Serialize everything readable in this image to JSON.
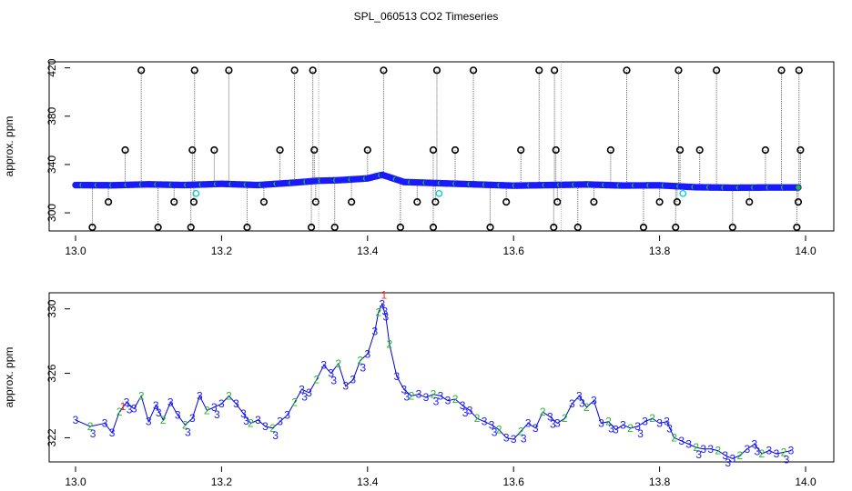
{
  "title": "SPL_060513  CO2 Timeseries",
  "colors": {
    "outlier": "#000000",
    "main_points": "#1a1aff",
    "fill_green": "#22bb22",
    "red": "#ff2222",
    "cyan": "#00cccc",
    "dotted": "#666666",
    "line": "#0000cc"
  },
  "chart_data": [
    {
      "type": "scatter",
      "title": "SPL_060513  CO2 Timeseries",
      "xlabel": "",
      "ylabel": "approx. ppm",
      "xlim": [
        13.0,
        14.0
      ],
      "ylim": [
        285,
        425
      ],
      "xticks": [
        13.0,
        13.2,
        13.4,
        13.6,
        13.8,
        14.0
      ],
      "xtick_labels": [
        "13.0",
        "13.2",
        "13.4",
        "13.6",
        "13.8",
        "14.0"
      ],
      "yticks": [
        300,
        340,
        380,
        420
      ],
      "ytick_labels": [
        "300",
        "340",
        "380",
        "420"
      ],
      "baseline": [
        [
          13.0,
          323.0
        ],
        [
          13.05,
          322.8
        ],
        [
          13.1,
          323.6
        ],
        [
          13.15,
          323.0
        ],
        [
          13.2,
          324.0
        ],
        [
          13.25,
          323.0
        ],
        [
          13.3,
          325.0
        ],
        [
          13.33,
          326.5
        ],
        [
          13.36,
          327.0
        ],
        [
          13.4,
          328.5
        ],
        [
          13.42,
          331.5
        ],
        [
          13.45,
          325.5
        ],
        [
          13.5,
          324.5
        ],
        [
          13.55,
          323.5
        ],
        [
          13.6,
          322.5
        ],
        [
          13.65,
          323.0
        ],
        [
          13.7,
          323.5
        ],
        [
          13.75,
          322.6
        ],
        [
          13.8,
          322.8
        ],
        [
          13.85,
          321.2
        ],
        [
          13.9,
          320.8
        ],
        [
          13.95,
          321.0
        ],
        [
          13.99,
          321.0
        ]
      ],
      "outliers": [
        [
          13.023,
          288
        ],
        [
          13.045,
          309
        ],
        [
          13.068,
          352
        ],
        [
          13.09,
          418
        ],
        [
          13.113,
          288
        ],
        [
          13.135,
          309
        ],
        [
          13.16,
          352
        ],
        [
          13.162,
          309
        ],
        [
          13.163,
          418
        ],
        [
          13.158,
          288
        ],
        [
          13.19,
          352
        ],
        [
          13.21,
          418
        ],
        [
          13.235,
          288
        ],
        [
          13.258,
          309
        ],
        [
          13.28,
          352
        ],
        [
          13.3,
          418
        ],
        [
          13.323,
          288
        ],
        [
          13.325,
          418
        ],
        [
          13.327,
          352
        ],
        [
          13.329,
          309
        ],
        [
          13.355,
          288
        ],
        [
          13.378,
          309
        ],
        [
          13.4,
          352
        ],
        [
          13.422,
          418
        ],
        [
          13.445,
          288
        ],
        [
          13.468,
          309
        ],
        [
          13.49,
          352
        ],
        [
          13.493,
          309
        ],
        [
          13.495,
          418
        ],
        [
          13.49,
          288
        ],
        [
          13.52,
          352
        ],
        [
          13.545,
          418
        ],
        [
          13.568,
          288
        ],
        [
          13.59,
          309
        ],
        [
          13.61,
          352
        ],
        [
          13.635,
          418
        ],
        [
          13.655,
          288
        ],
        [
          13.656,
          418
        ],
        [
          13.658,
          352
        ],
        [
          13.66,
          309
        ],
        [
          13.688,
          288
        ],
        [
          13.71,
          309
        ],
        [
          13.733,
          352
        ],
        [
          13.755,
          418
        ],
        [
          13.778,
          288
        ],
        [
          13.8,
          309
        ],
        [
          13.822,
          288
        ],
        [
          13.824,
          309
        ],
        [
          13.826,
          418
        ],
        [
          13.828,
          352
        ],
        [
          13.855,
          352
        ],
        [
          13.878,
          418
        ],
        [
          13.9,
          288
        ],
        [
          13.923,
          309
        ],
        [
          13.945,
          352
        ],
        [
          13.967,
          418
        ],
        [
          13.988,
          288
        ],
        [
          13.99,
          309
        ],
        [
          13.991,
          418
        ],
        [
          13.993,
          352
        ]
      ],
      "cyan_points": [
        [
          13.165,
          316
        ],
        [
          13.498,
          316
        ],
        [
          13.832,
          316
        ]
      ]
    },
    {
      "type": "line",
      "xlabel": "",
      "ylabel": "approx. ppm",
      "xlim": [
        13.0,
        14.0
      ],
      "ylim": [
        320.5,
        331.0
      ],
      "xticks": [
        13.0,
        13.2,
        13.4,
        13.6,
        13.8,
        14.0
      ],
      "xtick_labels": [
        "13.0",
        "13.2",
        "13.4",
        "13.6",
        "13.8",
        "14.0"
      ],
      "yticks": [
        322,
        326,
        330
      ],
      "ytick_labels": [
        "322",
        "326",
        "330"
      ],
      "series": [
        {
          "name": "CO2",
          "points": [
            [
              13.0,
              323.1
            ],
            [
              13.02,
              322.7
            ],
            [
              13.04,
              322.9
            ],
            [
              13.05,
              322.3
            ],
            [
              13.06,
              323.6
            ],
            [
              13.07,
              324.2
            ],
            [
              13.08,
              323.8
            ],
            [
              13.09,
              324.6
            ],
            [
              13.1,
              323.0
            ],
            [
              13.11,
              324.0
            ],
            [
              13.12,
              323.1
            ],
            [
              13.13,
              324.2
            ],
            [
              13.14,
              323.4
            ],
            [
              13.15,
              322.8
            ],
            [
              13.16,
              323.2
            ],
            [
              13.17,
              324.6
            ],
            [
              13.18,
              323.7
            ],
            [
              13.19,
              323.9
            ],
            [
              13.2,
              324.1
            ],
            [
              13.21,
              324.6
            ],
            [
              13.22,
              324.1
            ],
            [
              13.23,
              323.5
            ],
            [
              13.24,
              322.9
            ],
            [
              13.25,
              323.1
            ],
            [
              13.26,
              322.7
            ],
            [
              13.27,
              322.6
            ],
            [
              13.28,
              323.0
            ],
            [
              13.29,
              323.4
            ],
            [
              13.3,
              324.2
            ],
            [
              13.31,
              325.0
            ],
            [
              13.32,
              324.8
            ],
            [
              13.33,
              325.6
            ],
            [
              13.34,
              326.5
            ],
            [
              13.35,
              326.0
            ],
            [
              13.36,
              326.6
            ],
            [
              13.37,
              325.2
            ],
            [
              13.38,
              325.6
            ],
            [
              13.39,
              326.8
            ],
            [
              13.4,
              327.2
            ],
            [
              13.41,
              328.6
            ],
            [
              13.415,
              329.8
            ],
            [
              13.42,
              330.3
            ],
            [
              13.425,
              329.5
            ],
            [
              13.43,
              327.8
            ],
            [
              13.44,
              325.8
            ],
            [
              13.45,
              325.0
            ],
            [
              13.46,
              324.6
            ],
            [
              13.47,
              324.7
            ],
            [
              13.48,
              324.5
            ],
            [
              13.49,
              324.7
            ],
            [
              13.5,
              324.6
            ],
            [
              13.51,
              324.3
            ],
            [
              13.52,
              324.4
            ],
            [
              13.53,
              324.0
            ],
            [
              13.54,
              323.7
            ],
            [
              13.55,
              323.2
            ],
            [
              13.56,
              323.0
            ],
            [
              13.57,
              322.8
            ],
            [
              13.58,
              322.5
            ],
            [
              13.59,
              322.0
            ],
            [
              13.6,
              321.9
            ],
            [
              13.61,
              322.4
            ],
            [
              13.62,
              322.9
            ],
            [
              13.63,
              322.6
            ],
            [
              13.64,
              323.6
            ],
            [
              13.65,
              323.3
            ],
            [
              13.66,
              322.9
            ],
            [
              13.67,
              323.2
            ],
            [
              13.68,
              324.1
            ],
            [
              13.69,
              324.6
            ],
            [
              13.7,
              323.9
            ],
            [
              13.71,
              324.3
            ],
            [
              13.72,
              322.9
            ],
            [
              13.73,
              323.0
            ],
            [
              13.74,
              322.5
            ],
            [
              13.75,
              322.8
            ],
            [
              13.76,
              322.6
            ],
            [
              13.77,
              322.7
            ],
            [
              13.78,
              323.0
            ],
            [
              13.79,
              323.2
            ],
            [
              13.8,
              322.9
            ],
            [
              13.81,
              323.0
            ],
            [
              13.82,
              322.0
            ],
            [
              13.83,
              321.8
            ],
            [
              13.84,
              321.6
            ],
            [
              13.85,
              321.4
            ],
            [
              13.86,
              321.3
            ],
            [
              13.87,
              321.3
            ],
            [
              13.88,
              321.2
            ],
            [
              13.89,
              320.9
            ],
            [
              13.9,
              320.7
            ],
            [
              13.91,
              320.9
            ],
            [
              13.92,
              321.3
            ],
            [
              13.93,
              321.6
            ],
            [
              13.94,
              321.0
            ],
            [
              13.95,
              321.2
            ],
            [
              13.96,
              321.0
            ],
            [
              13.97,
              321.1
            ],
            [
              13.98,
              321.2
            ]
          ]
        }
      ],
      "label_digits": [
        "1",
        "2",
        "3"
      ]
    }
  ]
}
